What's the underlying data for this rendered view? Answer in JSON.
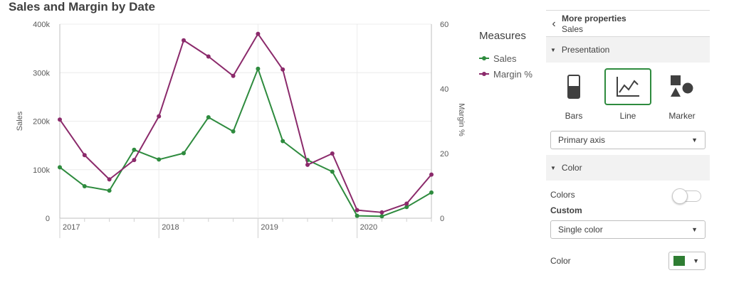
{
  "chart_title": "Sales and Margin by Date",
  "chart_data": {
    "type": "line",
    "title": "Sales and Margin by Date",
    "x": [
      "2017-01",
      "2017-04",
      "2017-07",
      "2017-10",
      "2018-01",
      "2018-04",
      "2018-07",
      "2018-10",
      "2019-01",
      "2019-04",
      "2019-07",
      "2019-10",
      "2020-01",
      "2020-04",
      "2020-07",
      "2020-10"
    ],
    "x_tick_labels": [
      "2017",
      "2018",
      "2019",
      "2020"
    ],
    "ylabel": "Sales",
    "y2label": "Margin %",
    "ylim": [
      0,
      400000
    ],
    "y2lim": [
      0,
      60
    ],
    "y_tick_labels": [
      "0",
      "100k",
      "200k",
      "300k",
      "400k"
    ],
    "y2_tick_labels": [
      "0",
      "20",
      "40",
      "60"
    ],
    "grid": true,
    "legend_title": "Measures",
    "legend_position": "right",
    "series": [
      {
        "name": "Sales",
        "axis": "primary",
        "color": "#2e8b3e",
        "values": [
          105000,
          66000,
          57000,
          141000,
          121000,
          134000,
          208000,
          179000,
          308000,
          159000,
          120000,
          96000,
          5000,
          4000,
          23000,
          53000
        ]
      },
      {
        "name": "Margin %",
        "axis": "secondary",
        "color": "#8b2a6b",
        "values": [
          30.5,
          19.5,
          12,
          18,
          31.5,
          55,
          50,
          44,
          57,
          46,
          16.5,
          20,
          2.5,
          1.8,
          4.5,
          13.5
        ]
      }
    ]
  },
  "panel": {
    "title": "More properties",
    "subtitle": "Sales",
    "presentation_label": "Presentation",
    "options": [
      {
        "label": "Bars",
        "icon": "bars-icon",
        "selected": false
      },
      {
        "label": "Line",
        "icon": "line-chart-icon",
        "selected": true
      },
      {
        "label": "Marker",
        "icon": "marker-icon",
        "selected": false
      }
    ],
    "axis_dropdown": "Primary axis",
    "color_section_label": "Color",
    "colors_label": "Colors",
    "colors_mode": "Custom",
    "color_type_dropdown": "Single color",
    "color_label": "Color",
    "color_value": "#2e7d32"
  }
}
